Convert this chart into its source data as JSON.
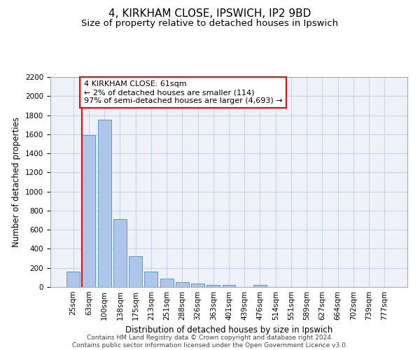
{
  "title_line1": "4, KIRKHAM CLOSE, IPSWICH, IP2 9BD",
  "title_line2": "Size of property relative to detached houses in Ipswich",
  "xlabel": "Distribution of detached houses by size in Ipswich",
  "ylabel": "Number of detached properties",
  "categories": [
    "25sqm",
    "63sqm",
    "100sqm",
    "138sqm",
    "175sqm",
    "213sqm",
    "251sqm",
    "288sqm",
    "326sqm",
    "363sqm",
    "401sqm",
    "439sqm",
    "476sqm",
    "514sqm",
    "551sqm",
    "589sqm",
    "627sqm",
    "664sqm",
    "702sqm",
    "739sqm",
    "777sqm"
  ],
  "values": [
    160,
    1590,
    1750,
    710,
    320,
    160,
    90,
    55,
    35,
    25,
    20,
    0,
    20,
    0,
    0,
    0,
    0,
    0,
    0,
    0,
    0
  ],
  "bar_color": "#aec6e8",
  "bar_edge_color": "#5b9bd5",
  "grid_color": "#c8d4e8",
  "background_color": "#eef2f8",
  "annotation_box_text": "4 KIRKHAM CLOSE: 61sqm\n← 2% of detached houses are smaller (114)\n97% of semi-detached houses are larger (4,693) →",
  "vline_x": 1,
  "ylim": [
    0,
    2200
  ],
  "yticks": [
    0,
    200,
    400,
    600,
    800,
    1000,
    1200,
    1400,
    1600,
    1800,
    2000,
    2200
  ],
  "footer_line1": "Contains HM Land Registry data © Crown copyright and database right 2024.",
  "footer_line2": "Contains public sector information licensed under the Open Government Licence v3.0.",
  "title_fontsize": 11,
  "subtitle_fontsize": 9.5,
  "label_fontsize": 8.5,
  "tick_fontsize": 7.5,
  "annotation_fontsize": 8
}
